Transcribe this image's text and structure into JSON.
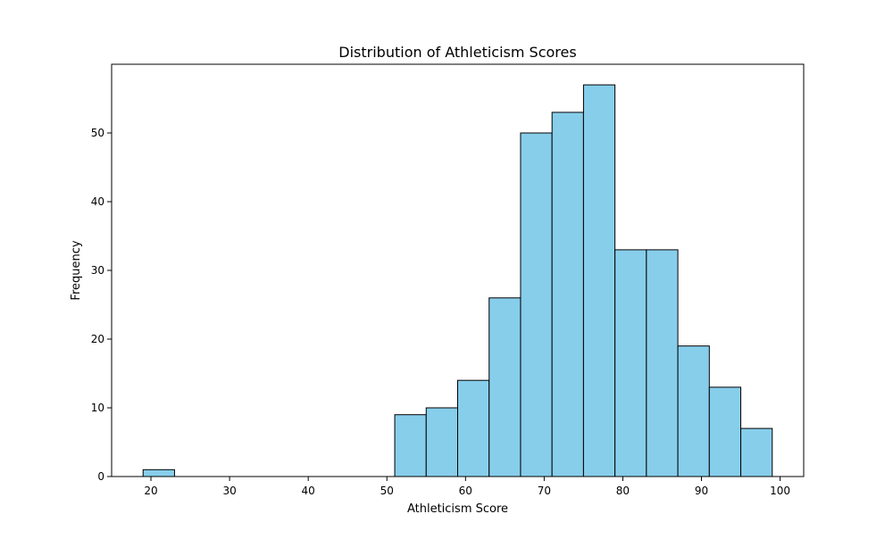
{
  "chart_data": {
    "type": "bar",
    "title": "Distribution of Athleticism Scores",
    "xlabel": "Athleticism Score",
    "ylabel": "Frequency",
    "xlim": [
      15,
      103
    ],
    "ylim": [
      0,
      60
    ],
    "xticks": [
      20,
      30,
      40,
      50,
      60,
      70,
      80,
      90,
      100
    ],
    "yticks": [
      0,
      10,
      20,
      30,
      40,
      50
    ],
    "bins": [
      {
        "x0": 19,
        "x1": 23,
        "count": 1
      },
      {
        "x0": 23,
        "x1": 27,
        "count": 0
      },
      {
        "x0": 27,
        "x1": 31,
        "count": 0
      },
      {
        "x0": 31,
        "x1": 35,
        "count": 0
      },
      {
        "x0": 35,
        "x1": 39,
        "count": 0
      },
      {
        "x0": 39,
        "x1": 43,
        "count": 0
      },
      {
        "x0": 43,
        "x1": 47,
        "count": 0
      },
      {
        "x0": 47,
        "x1": 51,
        "count": 0
      },
      {
        "x0": 51,
        "x1": 55,
        "count": 9
      },
      {
        "x0": 55,
        "x1": 59,
        "count": 10
      },
      {
        "x0": 59,
        "x1": 63,
        "count": 14
      },
      {
        "x0": 63,
        "x1": 67,
        "count": 26
      },
      {
        "x0": 67,
        "x1": 71,
        "count": 50
      },
      {
        "x0": 71,
        "x1": 75,
        "count": 53
      },
      {
        "x0": 75,
        "x1": 79,
        "count": 57
      },
      {
        "x0": 79,
        "x1": 83,
        "count": 33
      },
      {
        "x0": 83,
        "x1": 87,
        "count": 33
      },
      {
        "x0": 87,
        "x1": 91,
        "count": 19
      },
      {
        "x0": 91,
        "x1": 95,
        "count": 13
      },
      {
        "x0": 95,
        "x1": 99,
        "count": 7
      }
    ],
    "bar_color": "#87ceeb",
    "edge_color": "#000000",
    "grid": false,
    "legend": "none"
  }
}
